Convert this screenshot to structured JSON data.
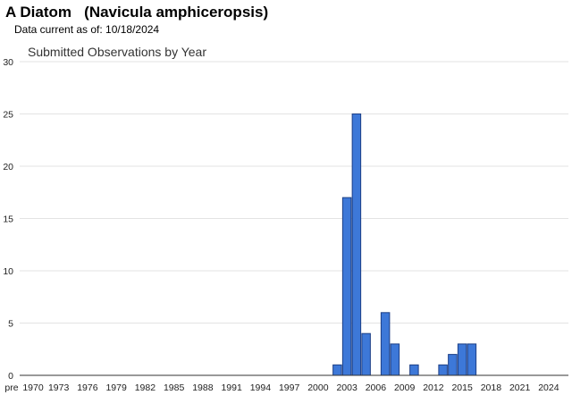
{
  "header": {
    "title": "A Diatom   (Navicula amphiceropsis)",
    "data_current": "Data current as of: 10/18/2024"
  },
  "chart_data": {
    "type": "bar",
    "title": "Submitted Observations by Year",
    "xlabel": "",
    "ylabel": "",
    "ylim": [
      0,
      30
    ],
    "yticks": [
      0,
      5,
      10,
      15,
      20,
      25,
      30
    ],
    "grid": true,
    "legend": "none",
    "bar_color": "#3d78d8",
    "bar_edge_color": "#1c3f86",
    "categories": [
      "pre 1970",
      "1971",
      "1972",
      "1973",
      "1974",
      "1975",
      "1976",
      "1977",
      "1978",
      "1979",
      "1980",
      "1981",
      "1982",
      "1983",
      "1984",
      "1985",
      "1986",
      "1987",
      "1988",
      "1989",
      "1990",
      "1991",
      "1992",
      "1993",
      "1994",
      "1995",
      "1996",
      "1997",
      "1998",
      "1999",
      "2000",
      "2001",
      "2002",
      "2003",
      "2004",
      "2005",
      "2006",
      "2007",
      "2008",
      "2009",
      "2010",
      "2011",
      "2012",
      "2013",
      "2014",
      "2015",
      "2016",
      "2017",
      "2018",
      "2019",
      "2020",
      "2021",
      "2022",
      "2023",
      "2024"
    ],
    "values": [
      0,
      0,
      0,
      0,
      0,
      0,
      0,
      0,
      0,
      0,
      0,
      0,
      0,
      0,
      0,
      0,
      0,
      0,
      0,
      0,
      0,
      0,
      0,
      0,
      0,
      0,
      0,
      0,
      0,
      0,
      0,
      0,
      1,
      17,
      25,
      4,
      0,
      6,
      3,
      0,
      1,
      0,
      0,
      1,
      2,
      3,
      3,
      0,
      0,
      0,
      0,
      0,
      0,
      0,
      0
    ],
    "tick_labels": [
      "pre",
      "1970",
      "1973",
      "1976",
      "1979",
      "1982",
      "1985",
      "1988",
      "1991",
      "1994",
      "1997",
      "2000",
      "2003",
      "2006",
      "2009",
      "2012",
      "2015",
      "2018",
      "2021",
      "2024"
    ]
  }
}
